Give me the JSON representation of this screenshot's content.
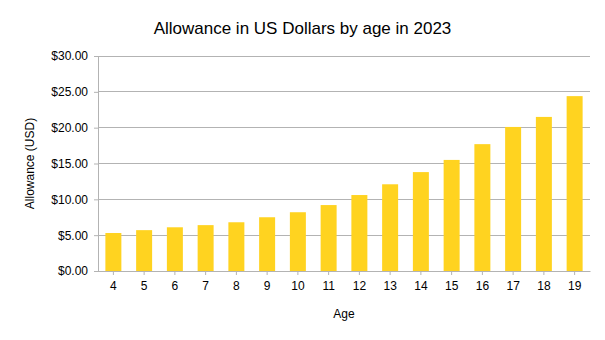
{
  "chart_data": {
    "type": "bar",
    "title": "Allowance in US Dollars by age in 2023",
    "x_label": "Age",
    "y_label": "Allowance (USD)",
    "categories": [
      "4",
      "5",
      "6",
      "7",
      "8",
      "9",
      "10",
      "11",
      "12",
      "13",
      "14",
      "15",
      "16",
      "17",
      "18",
      "19"
    ],
    "values": [
      5.3,
      5.7,
      6.1,
      6.4,
      6.8,
      7.5,
      8.2,
      9.2,
      10.6,
      12.1,
      13.8,
      15.5,
      17.7,
      20.1,
      21.5,
      24.4
    ],
    "color": "#ffd320",
    "ylim": [
      0,
      30
    ],
    "yticks": [
      {
        "value": 0,
        "label": "$0.00"
      },
      {
        "value": 5,
        "label": "$5.00"
      },
      {
        "value": 10,
        "label": "$10.00"
      },
      {
        "value": 15,
        "label": "$15.00"
      },
      {
        "value": 20,
        "label": "$20.00"
      },
      {
        "value": 25,
        "label": "$25.00"
      },
      {
        "value": 30,
        "label": "$30.00"
      }
    ],
    "grid": true
  }
}
